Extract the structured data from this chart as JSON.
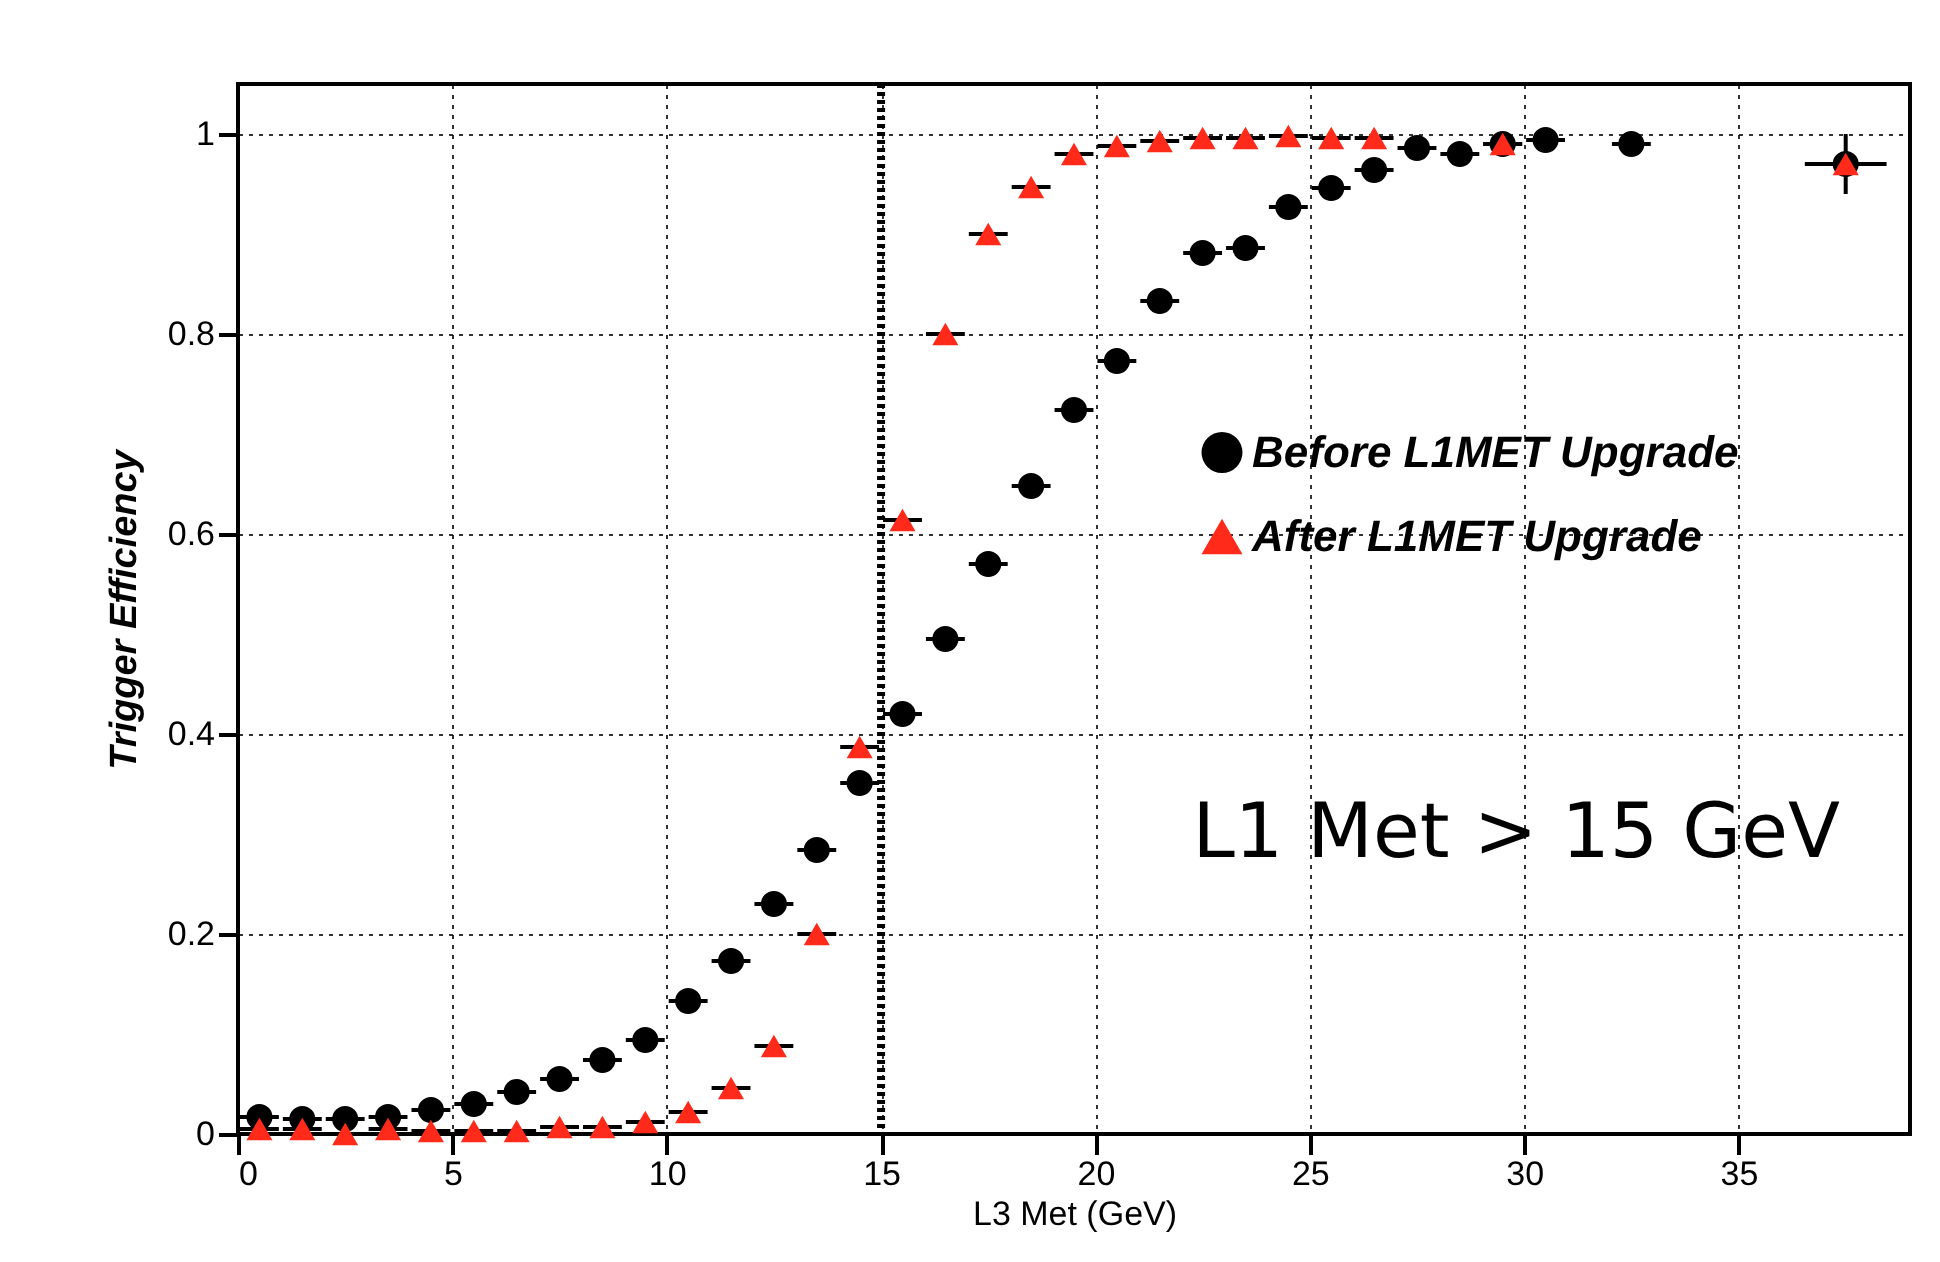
{
  "chart_data": {
    "type": "scatter",
    "xlabel": "L3 Met (GeV)",
    "ylabel": "Trigger Efficiency",
    "xlim": [
      0,
      39
    ],
    "xticks": [
      0,
      5,
      10,
      15,
      20,
      25,
      30,
      35
    ],
    "ylim": [
      0,
      1.05
    ],
    "yticks": [
      0,
      0.2,
      0.4,
      0.6,
      0.8,
      1
    ],
    "grid": true,
    "legend": "right",
    "ref_lines": [
      {
        "axis": "x",
        "value": 15,
        "line_style": "dotted",
        "color": "#000000"
      }
    ],
    "annotations": [
      "L1 Met > 15 GeV"
    ],
    "series": [
      {
        "name": "Before L1MET Upgrade",
        "color": "#000000",
        "marker": "circle",
        "x": [
          0.5,
          1.5,
          2.5,
          3.5,
          4.5,
          5.5,
          6.5,
          7.5,
          8.5,
          9.5,
          10.5,
          11.5,
          12.5,
          13.5,
          14.5,
          15.5,
          16.5,
          17.5,
          18.5,
          19.5,
          20.5,
          21.5,
          22.5,
          23.5,
          24.5,
          25.5,
          26.5,
          27.5,
          28.5,
          29.5,
          30.5,
          32.5,
          37.5
        ],
        "values": [
          0.017,
          0.015,
          0.015,
          0.017,
          0.024,
          0.03,
          0.042,
          0.055,
          0.074,
          0.094,
          0.133,
          0.173,
          0.23,
          0.284,
          0.351,
          0.42,
          0.495,
          0.57,
          0.648,
          0.724,
          0.773,
          0.833,
          0.881,
          0.886,
          0.927,
          0.946,
          0.964,
          0.986,
          0.98,
          0.99,
          0.994,
          0.99,
          0.97
        ],
        "xerrors": [
          0.5,
          0.5,
          0.5,
          0.5,
          0.5,
          0.5,
          0.5,
          0.5,
          0.5,
          0.5,
          0.5,
          0.5,
          0.5,
          0.5,
          0.5,
          0.5,
          0.5,
          0.5,
          0.5,
          0.5,
          0.5,
          0.5,
          0.5,
          0.5,
          0.5,
          0.5,
          0.5,
          0.5,
          0.5,
          0.5,
          0.5,
          0.5,
          1
        ],
        "errors": [
          null,
          null,
          null,
          null,
          null,
          null,
          null,
          null,
          null,
          null,
          null,
          null,
          null,
          null,
          null,
          null,
          null,
          null,
          null,
          null,
          null,
          null,
          null,
          null,
          null,
          null,
          null,
          null,
          null,
          null,
          null,
          null,
          0.03
        ]
      },
      {
        "name": "After L1MET Upgrade",
        "color": "#ff2a1a",
        "marker": "triangle",
        "x": [
          0.5,
          1.5,
          2.5,
          3.5,
          4.5,
          5.5,
          6.5,
          7.5,
          8.5,
          9.5,
          10.5,
          11.5,
          12.5,
          13.5,
          14.5,
          15.5,
          16.5,
          17.5,
          18.5,
          19.5,
          20.5,
          21.5,
          22.5,
          23.5,
          24.5,
          25.5,
          26.5,
          29.5,
          37.5
        ],
        "values": [
          0.005,
          0.005,
          0.0,
          0.005,
          0.003,
          0.003,
          0.003,
          0.007,
          0.007,
          0.012,
          0.022,
          0.046,
          0.088,
          0.2,
          0.387,
          0.614,
          0.8,
          0.9,
          0.947,
          0.98,
          0.988,
          0.993,
          0.996,
          0.996,
          0.998,
          0.996,
          0.996,
          0.99,
          0.97
        ],
        "xerrors": [
          0.5,
          0.5,
          0.5,
          0.5,
          0.5,
          0.5,
          0.5,
          0.5,
          0.5,
          0.5,
          0.5,
          0.5,
          0.5,
          0.5,
          0.5,
          0.5,
          0.5,
          0.5,
          0.5,
          0.5,
          0.5,
          0.5,
          0.5,
          0.5,
          0.5,
          0.5,
          0.5,
          0.5,
          null
        ]
      }
    ]
  }
}
